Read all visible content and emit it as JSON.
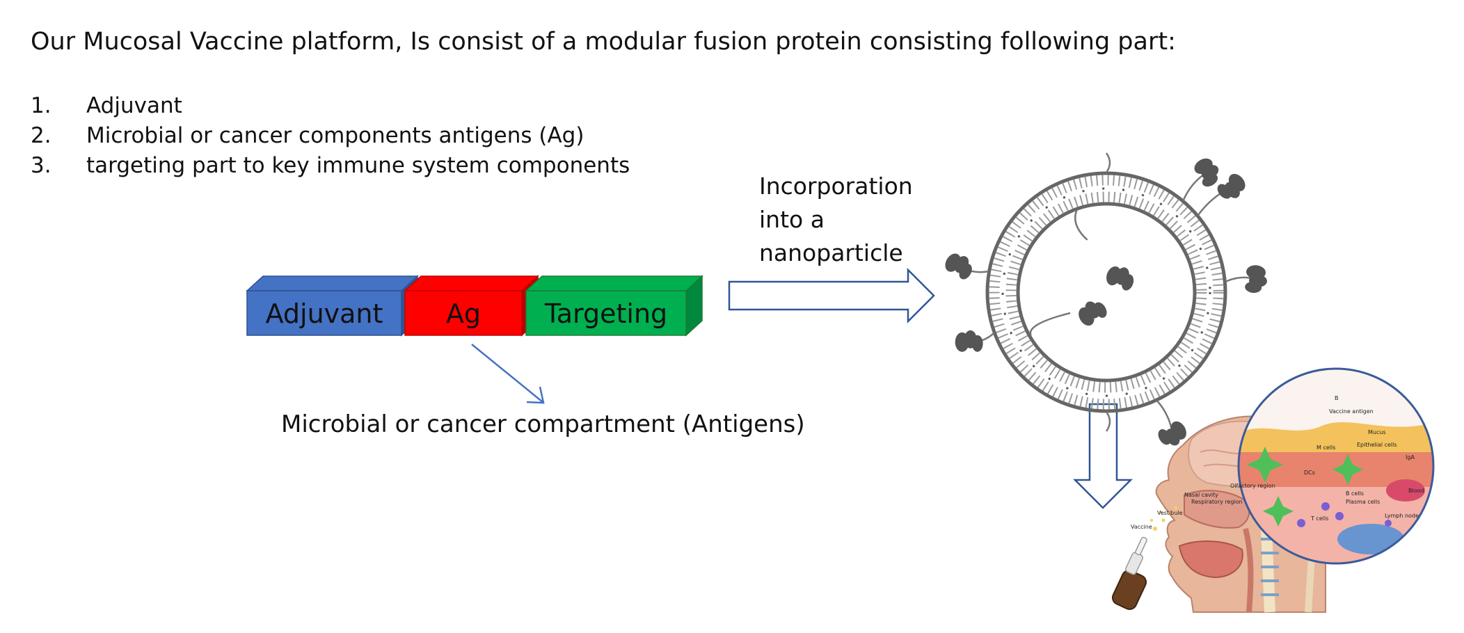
{
  "heading": "Our Mucosal Vaccine platform, Is consist of a modular fusion protein consisting following part:",
  "parts": [
    {
      "num": "1.",
      "text": "Adjuvant"
    },
    {
      "num": "2.",
      "text": "Microbial or cancer components antigens (Ag)"
    },
    {
      "num": "3.",
      "text": "targeting part to key immune system components"
    }
  ],
  "fusion_protein": {
    "blocks": [
      {
        "label": "Adjuvant",
        "color": "#4472C4"
      },
      {
        "label": "Ag",
        "color": "#FF0000"
      },
      {
        "label": "Targeting",
        "color": "#00B050"
      }
    ]
  },
  "incorporation_text": [
    "Incorporation",
    "into a",
    "nanoparticle"
  ],
  "antigen_caption": "Microbial or cancer compartment (Antigens)",
  "arrow_colors": {
    "outline": "#2F5597",
    "stroke": "#4472C4"
  },
  "nanoparticle": {
    "icon": "nanoparticle-liposome-icon"
  },
  "anatomy": {
    "icon": "nasal-vaccination-anatomy-illustration",
    "labels": {
      "b": "B",
      "vaccine_antigen": "Vaccine antigen",
      "mucus": "Mucus",
      "m_cells": "M cells",
      "epithelial_cells": "Epithelial cells",
      "iga": "IgA",
      "dcs": "DCs",
      "b_cells": "B cells",
      "plasma_cells": "Plasma cells",
      "blood": "Blood",
      "t_cells": "T cells",
      "lymph_node": "Lymph node",
      "olfactory_region": "Olfactory region",
      "nasal_cavity": "Nasal cavity",
      "respiratory_region": "Respiratory region",
      "vestibule": "Vestibule",
      "vaccine": "Vaccine"
    }
  }
}
